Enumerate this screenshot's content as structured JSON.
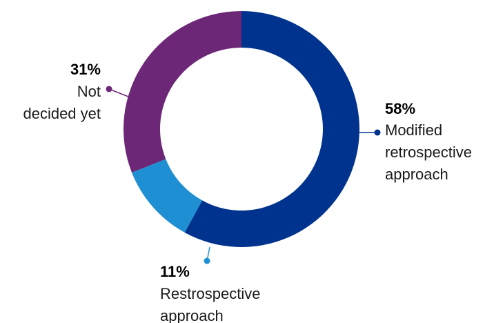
{
  "chart_data": {
    "type": "pie",
    "donut": true,
    "title": "",
    "legend": "none",
    "slices": [
      {
        "percent_label": "58%",
        "value": 58,
        "label_lines": [
          "Modified",
          "retrospective",
          "approach"
        ],
        "color": "#00338d"
      },
      {
        "percent_label": "11%",
        "value": 11,
        "label_lines": [
          "Restrospective",
          "approach"
        ],
        "color": "#1e8fd2"
      },
      {
        "percent_label": "31%",
        "value": 31,
        "label_lines": [
          "Not",
          "decided yet"
        ],
        "color": "#6d2777"
      }
    ]
  }
}
